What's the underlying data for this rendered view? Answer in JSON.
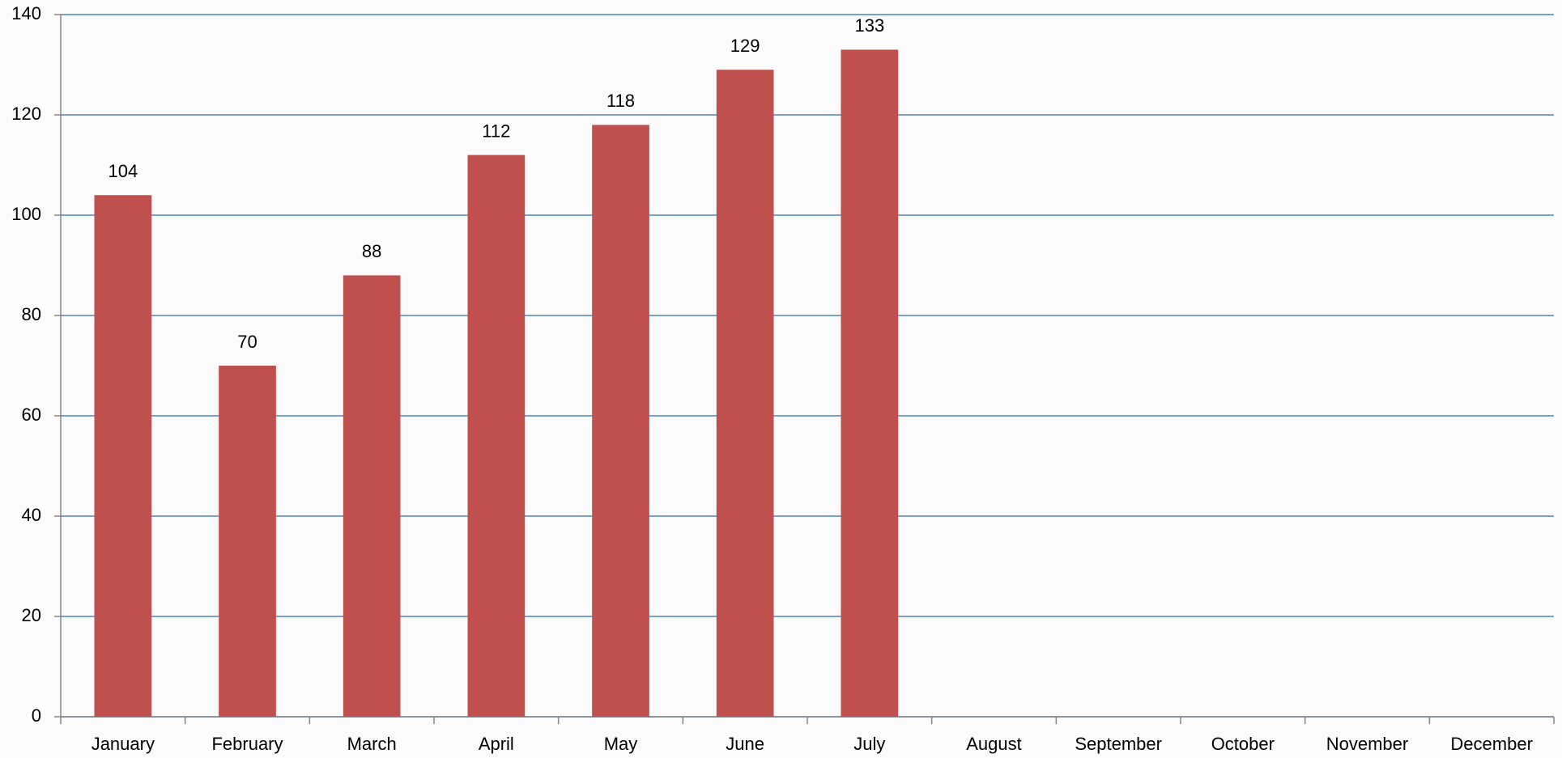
{
  "chart_data": {
    "type": "bar",
    "categories": [
      "January",
      "February",
      "March",
      "April",
      "May",
      "June",
      "July",
      "August",
      "September",
      "October",
      "November",
      "December"
    ],
    "values": [
      104,
      70,
      88,
      112,
      118,
      129,
      133,
      null,
      null,
      null,
      null,
      null
    ],
    "color": "#c0504d",
    "ylim": [
      0,
      140
    ],
    "yticks": [
      0,
      20,
      40,
      60,
      80,
      100,
      120,
      140
    ],
    "grid": true,
    "grid_color": "#4f81bd"
  }
}
